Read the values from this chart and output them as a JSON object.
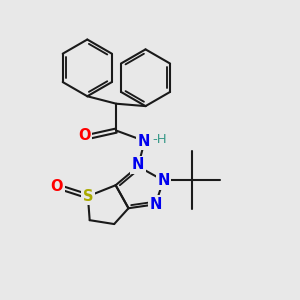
{
  "bg_color": "#e8e8e8",
  "bond_color": "#1a1a1a",
  "bond_width": 1.5,
  "figsize": [
    3.0,
    3.0
  ],
  "dpi": 100,
  "atom_colors": {
    "O": "#ff0000",
    "N": "#0000ee",
    "H": "#3a9a8a",
    "S": "#aaaa00"
  }
}
